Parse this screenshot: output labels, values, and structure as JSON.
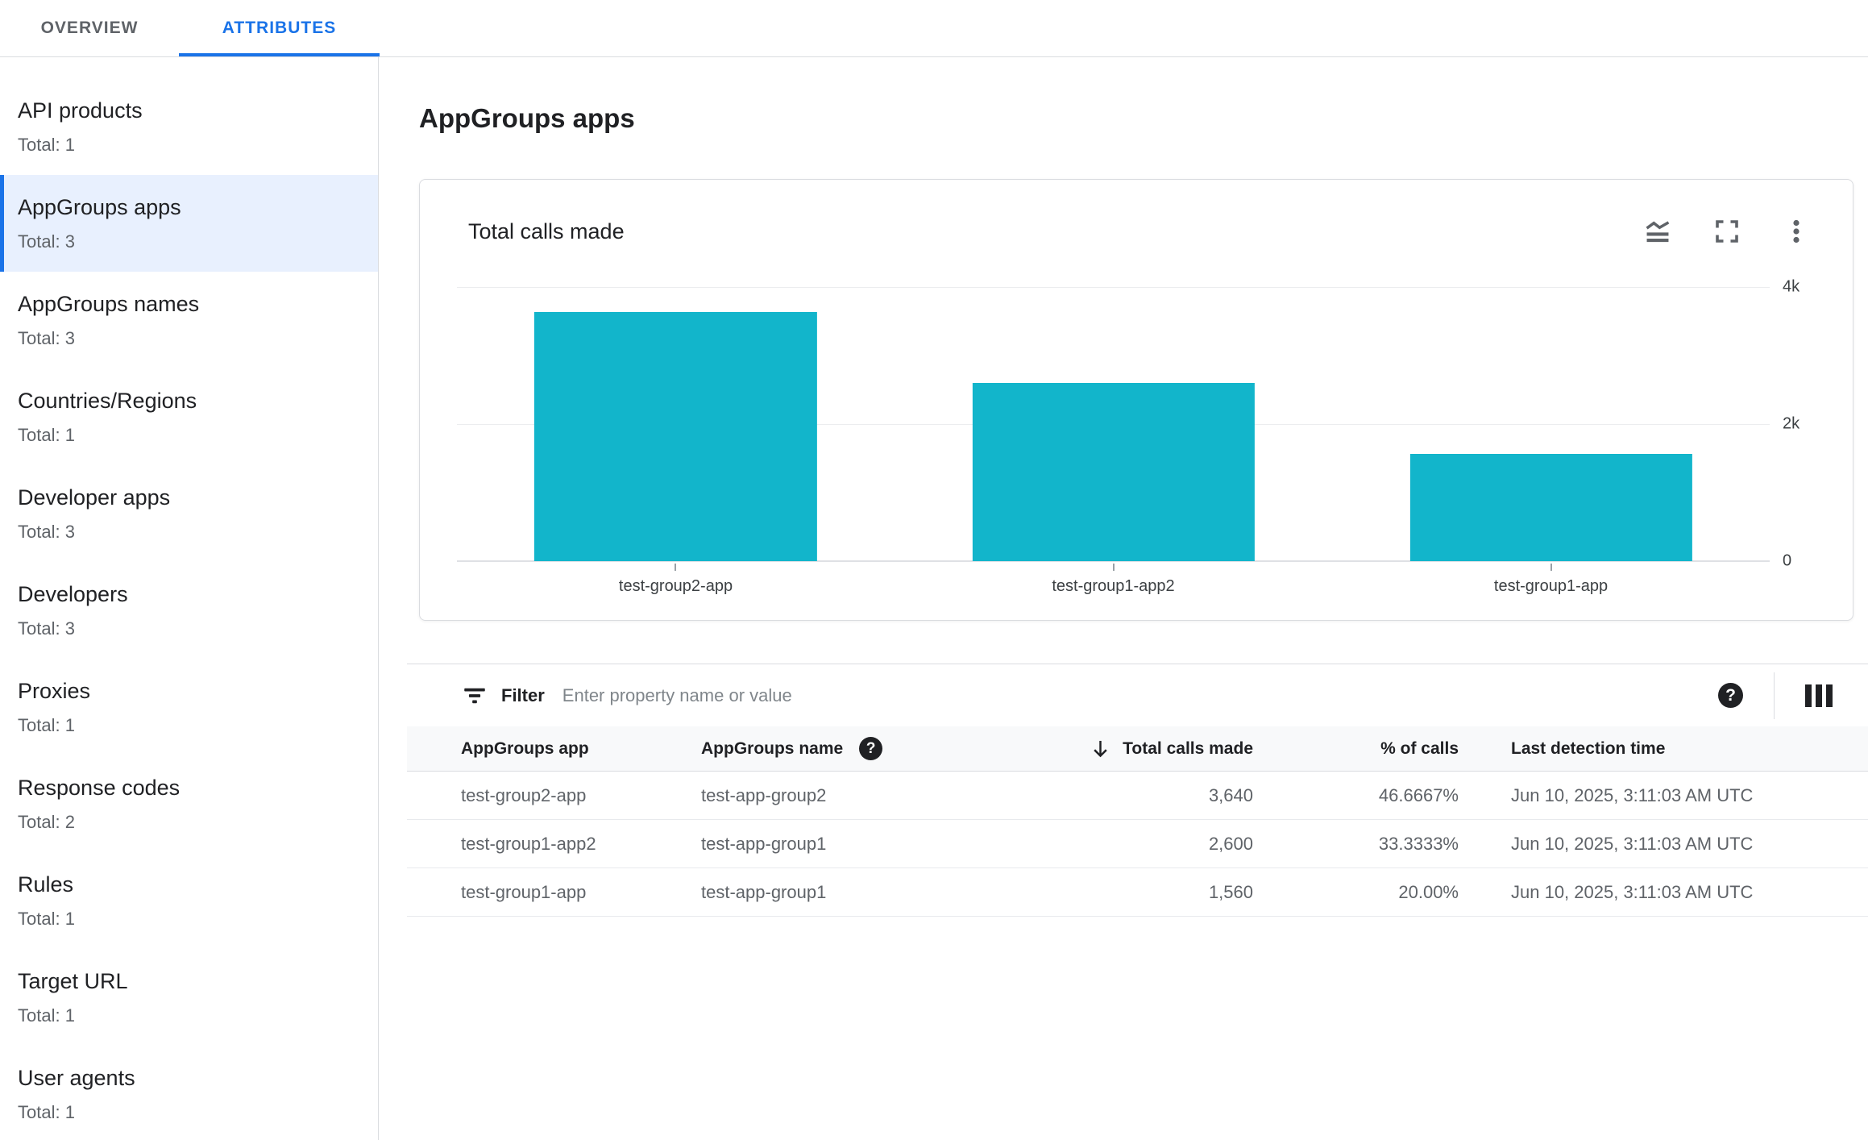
{
  "tabs": {
    "overview": "OVERVIEW",
    "attributes": "ATTRIBUTES"
  },
  "sidebar": {
    "items": [
      {
        "label": "API products",
        "total": "Total: 1",
        "selected": false
      },
      {
        "label": "AppGroups apps",
        "total": "Total: 3",
        "selected": true
      },
      {
        "label": "AppGroups names",
        "total": "Total: 3",
        "selected": false
      },
      {
        "label": "Countries/Regions",
        "total": "Total: 1",
        "selected": false
      },
      {
        "label": "Developer apps",
        "total": "Total: 3",
        "selected": false
      },
      {
        "label": "Developers",
        "total": "Total: 3",
        "selected": false
      },
      {
        "label": "Proxies",
        "total": "Total: 1",
        "selected": false
      },
      {
        "label": "Response codes",
        "total": "Total: 2",
        "selected": false
      },
      {
        "label": "Rules",
        "total": "Total: 1",
        "selected": false
      },
      {
        "label": "Target URL",
        "total": "Total: 1",
        "selected": false
      },
      {
        "label": "User agents",
        "total": "Total: 1",
        "selected": false
      }
    ]
  },
  "main": {
    "title": "AppGroups apps",
    "card": {
      "title": "Total calls made",
      "icons": [
        "area-chart",
        "fullscreen",
        "more-vert"
      ]
    },
    "filter": {
      "label": "Filter",
      "placeholder": "Enter property name or value",
      "icons": [
        "filter-list",
        "help",
        "view-columns"
      ]
    },
    "table": {
      "headers": [
        "AppGroups app",
        "AppGroups name",
        "Total calls made",
        "% of calls",
        "Last detection time"
      ],
      "sorted_column": "Total calls made",
      "sort_direction": "descending",
      "rows": [
        {
          "app": "test-group2-app",
          "name": "test-app-group2",
          "calls": "3,640",
          "pct": "46.6667%",
          "time": "Jun 10, 2025, 3:11:03 AM UTC"
        },
        {
          "app": "test-group1-app2",
          "name": "test-app-group1",
          "calls": "2,600",
          "pct": "33.3333%",
          "time": "Jun 10, 2025, 3:11:03 AM UTC"
        },
        {
          "app": "test-group1-app",
          "name": "test-app-group1",
          "calls": "1,560",
          "pct": "20.00%",
          "time": "Jun 10, 2025, 3:11:03 AM UTC"
        }
      ]
    }
  },
  "chart_data": {
    "type": "bar",
    "title": "Total calls made",
    "categories": [
      "test-group2-app",
      "test-group1-app2",
      "test-group1-app"
    ],
    "values": [
      3640,
      2600,
      1560
    ],
    "ylim": [
      0,
      4000
    ],
    "ytick_labels": [
      "0",
      "2k",
      "4k"
    ],
    "xlabel": "",
    "ylabel": "",
    "grid": "horizontal",
    "legend": "none",
    "bar_color": "#12B5CB",
    "yaxis_position": "right"
  },
  "colors": {
    "accent_blue": "#1A73E8",
    "selected_item_bg": "#E8F0FE",
    "bar_teal": "#12B5CB",
    "text_primary": "#202124",
    "text_secondary": "#5F6368",
    "border": "#DADCE0",
    "table_header_bg": "#F8F9FA"
  }
}
